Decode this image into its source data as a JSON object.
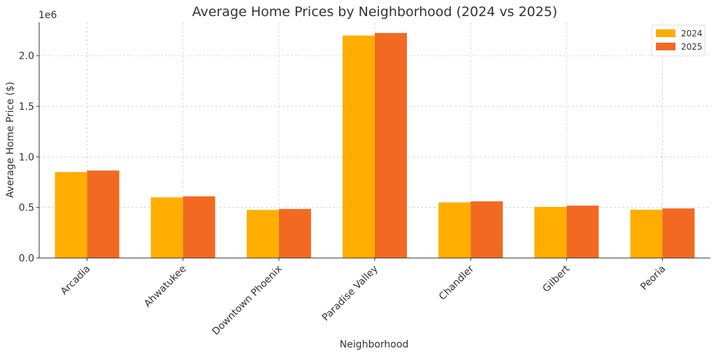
{
  "chart_data": {
    "type": "bar",
    "title": "Average Home Prices by Neighborhood (2024 vs 2025)",
    "xlabel": "Neighborhood",
    "ylabel": "Average Home Price ($)",
    "y_scale_label": "1e6",
    "ylim": [
      0,
      2330000
    ],
    "yticks": [
      0,
      500000,
      1000000,
      1500000,
      2000000
    ],
    "ytick_labels": [
      "0.0",
      "0.5",
      "1.0",
      "1.5",
      "2.0"
    ],
    "categories": [
      "Arcadia",
      "Ahwatukee",
      "Downtown Phoenix",
      "Paradise Valley",
      "Chandler",
      "Gilbert",
      "Peoria"
    ],
    "series": [
      {
        "name": "2024",
        "color": "#FFAE00",
        "values": [
          850000,
          600000,
          475000,
          2200000,
          550000,
          505000,
          478000
        ]
      },
      {
        "name": "2025",
        "color": "#F26A22",
        "values": [
          865000,
          610000,
          485000,
          2225000,
          560000,
          518000,
          490000
        ]
      }
    ],
    "grid": true,
    "legend_position": "top-right"
  }
}
